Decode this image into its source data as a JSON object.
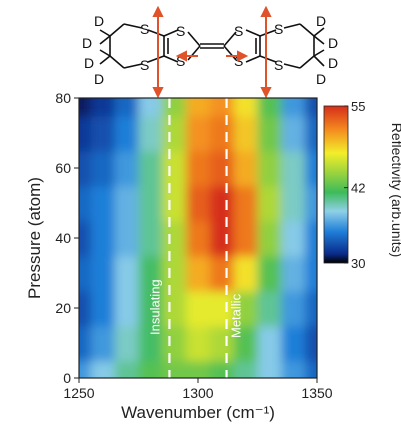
{
  "chart_data": {
    "type": "heatmap",
    "xlabel": "Wavenumber (cm⁻¹)",
    "ylabel": "Pressure (atom)",
    "xlim": [
      1250,
      1350
    ],
    "ylim": [
      0,
      80
    ],
    "x_ticks": [
      "1250",
      "1300",
      "1350"
    ],
    "y_ticks": [
      "0",
      "20",
      "40",
      "60",
      "80"
    ],
    "colorbar": {
      "label": "Reflectivity (arb.units)",
      "ticks": [
        "30",
        "42",
        "55"
      ],
      "range": [
        30,
        55
      ]
    },
    "annotations": [
      "Insulating",
      "Metallic"
    ],
    "dashed_lines_x": [
      1288,
      1312
    ],
    "x": [
      1250,
      1260,
      1270,
      1280,
      1290,
      1300,
      1310,
      1320,
      1330,
      1340,
      1350
    ],
    "y": [
      0,
      10,
      20,
      30,
      40,
      50,
      60,
      70,
      80
    ],
    "z": [
      [
        36,
        38,
        40,
        42,
        43,
        43,
        42,
        40,
        38,
        36,
        34
      ],
      [
        34,
        36,
        39,
        41,
        44,
        46,
        45,
        42,
        38,
        35,
        33
      ],
      [
        33,
        35,
        38,
        41,
        45,
        47,
        47,
        44,
        40,
        36,
        34
      ],
      [
        34,
        35,
        38,
        41,
        45,
        50,
        52,
        48,
        42,
        37,
        35
      ],
      [
        33,
        35,
        37,
        40,
        45,
        52,
        55,
        52,
        44,
        38,
        35
      ],
      [
        34,
        35,
        37,
        40,
        46,
        53,
        55,
        52,
        45,
        39,
        36
      ],
      [
        33,
        34,
        36,
        40,
        46,
        52,
        53,
        50,
        44,
        39,
        35
      ],
      [
        32,
        33,
        35,
        39,
        45,
        51,
        52,
        49,
        43,
        37,
        34
      ],
      [
        31,
        32,
        34,
        38,
        44,
        50,
        51,
        48,
        42,
        36,
        33
      ]
    ]
  },
  "molecule": {
    "atoms": [
      "D",
      "D",
      "D",
      "D",
      "S",
      "S",
      "S",
      "S",
      "S",
      "S",
      "S",
      "S",
      "D",
      "D",
      "D",
      "D"
    ]
  }
}
